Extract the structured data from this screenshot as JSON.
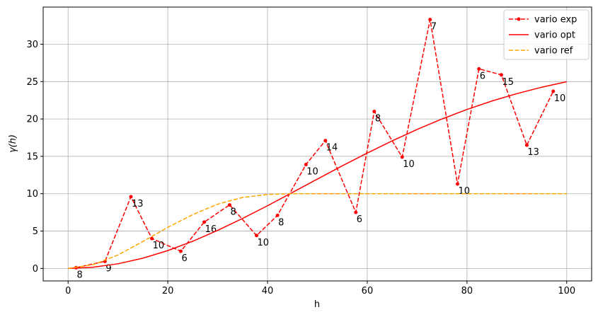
{
  "chart_data": {
    "type": "line",
    "xlabel": "h",
    "ylabel": "γ(h)",
    "xlim": [
      -5,
      105
    ],
    "ylim": [
      -1.67,
      34.97
    ],
    "xticks": [
      0,
      20,
      40,
      60,
      80,
      100
    ],
    "yticks": [
      0,
      5,
      10,
      15,
      20,
      25,
      30
    ],
    "grid": true,
    "legend": "upper right",
    "series": [
      {
        "name": "vario exp",
        "color": "#ff0000",
        "style": "dashed",
        "marker": true,
        "x": [
          1.6,
          7.4,
          12.6,
          16.8,
          22.6,
          27.3,
          32.4,
          37.8,
          42.0,
          47.7,
          51.6,
          57.7,
          61.4,
          67.0,
          72.6,
          78.1,
          82.4,
          86.9,
          92.0,
          97.3
        ],
        "values": [
          0.1,
          0.95,
          9.6,
          4.0,
          2.3,
          6.2,
          8.5,
          4.4,
          7.1,
          13.9,
          17.1,
          7.5,
          21.0,
          14.9,
          33.3,
          11.3,
          26.7,
          25.9,
          16.5,
          23.7
        ],
        "annotations": [
          8,
          9,
          13,
          10,
          6,
          16,
          8,
          10,
          8,
          10,
          14,
          6,
          8,
          10,
          7,
          10,
          6,
          15,
          13,
          10
        ]
      },
      {
        "name": "vario opt",
        "color": "#ff0000",
        "style": "solid",
        "x": [
          0,
          5,
          10,
          15,
          20,
          25,
          30,
          35,
          40,
          45,
          50,
          55,
          60,
          65,
          70,
          75,
          80,
          85,
          90,
          95,
          100
        ],
        "values": [
          0,
          0.16,
          0.62,
          1.37,
          2.39,
          3.64,
          5.09,
          6.69,
          8.39,
          10.17,
          11.96,
          13.73,
          15.44,
          17.07,
          18.6,
          20.0,
          21.27,
          22.4,
          23.39,
          24.25,
          24.98
        ]
      },
      {
        "name": "vario ref",
        "color": "#ffa500",
        "style": "dashed",
        "x": [
          0,
          5,
          10,
          15,
          20,
          25,
          30,
          35,
          40,
          45,
          50,
          55,
          60,
          65,
          70,
          75,
          80,
          85,
          90,
          95,
          100
        ],
        "values": [
          0,
          0.5,
          1.8,
          3.6,
          5.5,
          7.2,
          8.6,
          9.5,
          9.9,
          10,
          10,
          10,
          10,
          10,
          10,
          10,
          10,
          10,
          10,
          10,
          10
        ]
      }
    ]
  }
}
